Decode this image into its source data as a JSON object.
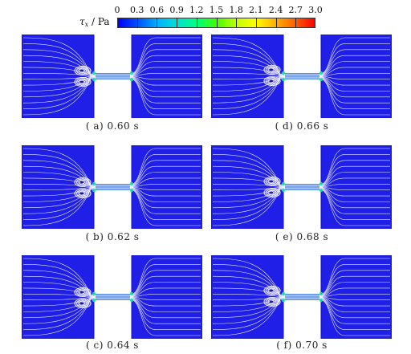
{
  "colorbar": {
    "symbol": "τ",
    "subscript": "x",
    "unit": " / Pa",
    "ticks": [
      "0",
      "0.3",
      "0.6",
      "0.9",
      "1.2",
      "1.5",
      "1.8",
      "2.1",
      "2.4",
      "2.7",
      "3.0"
    ],
    "stops": [
      "#0000ff",
      "#0050ff",
      "#00b0ff",
      "#00e0d0",
      "#00ff80",
      "#40ff00",
      "#c0ff00",
      "#ffff00",
      "#ffb000",
      "#ff6000",
      "#ff0000"
    ]
  },
  "colors": {
    "field": "#1f1fe8",
    "streamline": "#ffffff",
    "channel": "#5a8fe6",
    "hotspot": "#19e0a0"
  },
  "panels": [
    {
      "caption": "( a)  0.60 s",
      "vortex_tilt": 0
    },
    {
      "caption": "( d)  0.66 s",
      "vortex_tilt": -1
    },
    {
      "caption": "( b)  0.62 s",
      "vortex_tilt": 1
    },
    {
      "caption": "( e)  0.68 s",
      "vortex_tilt": 0
    },
    {
      "caption": "( c)  0.64 s",
      "vortex_tilt": 1
    },
    {
      "caption": "( f)  0.70 s",
      "vortex_tilt": -1
    }
  ]
}
